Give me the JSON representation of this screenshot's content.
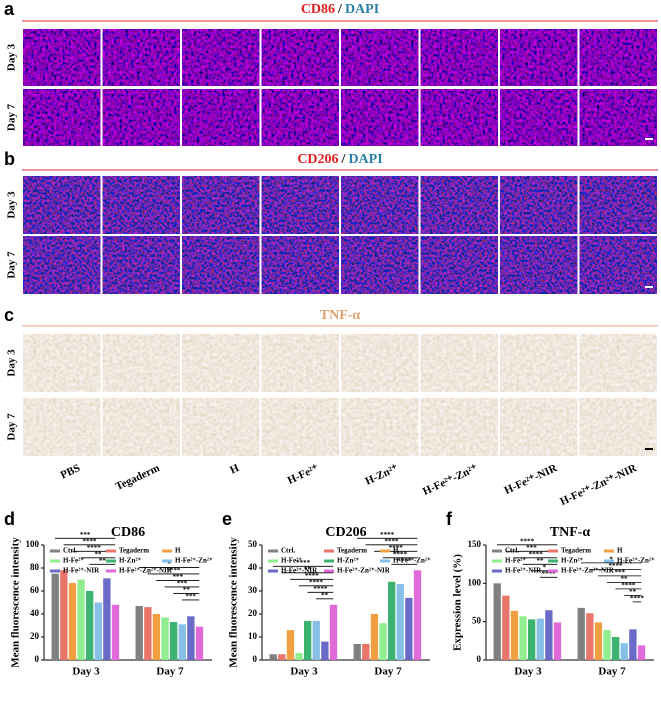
{
  "panels": [
    {
      "label": "a",
      "stain": "CD86",
      "sep": "/",
      "counter": "DAPI",
      "rows": [
        "Day 3",
        "Day 7"
      ]
    },
    {
      "label": "b",
      "stain": "CD206",
      "sep": "/",
      "counter": "DAPI",
      "rows": [
        "Day 3",
        "Day 7"
      ]
    },
    {
      "label": "c",
      "stain": "TNF-α",
      "rows": [
        "Day 3",
        "Day 7"
      ]
    }
  ],
  "groups": [
    "PBS",
    "Tegaderm",
    "H",
    "H-Fe²⁺",
    "H-Zn²⁺",
    "H-Fe²⁺-Zn²⁺",
    "H-Fe²⁺-NIR",
    "H-Fe²⁺-Zn²⁺-NIR"
  ],
  "chart_data": [
    {
      "type": "bar",
      "panel": "d",
      "title": "CD86",
      "ylabel": "Mean fluorescence intensity",
      "categories": [
        "Day 3",
        "Day 7"
      ],
      "ylim": [
        0,
        100
      ],
      "yticks": [
        0,
        20,
        40,
        60,
        80,
        100
      ],
      "series": [
        {
          "name": "Ctrl.",
          "color": "#808080",
          "values": [
            75,
            47
          ]
        },
        {
          "name": "Tegaderm",
          "color": "#e8746a",
          "values": [
            78,
            46
          ]
        },
        {
          "name": "H",
          "color": "#f0a040",
          "values": [
            67,
            40
          ]
        },
        {
          "name": "H-Fe²⁺",
          "color": "#90ee90",
          "values": [
            70,
            37
          ]
        },
        {
          "name": "H-Zn²⁺",
          "color": "#3cb371",
          "values": [
            60,
            33
          ]
        },
        {
          "name": "H-Fe²⁺-Zn²⁺",
          "color": "#87bfe8",
          "values": [
            50,
            31
          ]
        },
        {
          "name": "H-Fe²⁺-NIR",
          "color": "#6a6ac8",
          "values": [
            71,
            38
          ]
        },
        {
          "name": "H-Fe²⁺-Zn²⁺-NIR",
          "color": "#e06ad8",
          "values": [
            48,
            29
          ]
        }
      ],
      "significance": [
        [
          "***",
          "****",
          "****",
          "**",
          "**"
        ],
        [
          "*",
          "****",
          "***",
          "***",
          "**",
          "***"
        ]
      ]
    },
    {
      "type": "bar",
      "panel": "e",
      "title": "CD206",
      "ylabel": "Mean fluorescence intensity",
      "categories": [
        "Day 3",
        "Day 7"
      ],
      "ylim": [
        0,
        50
      ],
      "yticks": [
        0,
        10,
        20,
        30,
        40,
        50
      ],
      "series": [
        {
          "name": "Ctrl.",
          "color": "#808080",
          "values": [
            2.5,
            7
          ]
        },
        {
          "name": "Tegaderm",
          "color": "#e8746a",
          "values": [
            2.5,
            7
          ]
        },
        {
          "name": "H",
          "color": "#f0a040",
          "values": [
            13,
            20
          ]
        },
        {
          "name": "H-Fe²⁺",
          "color": "#90ee90",
          "values": [
            3,
            16
          ]
        },
        {
          "name": "H-Zn²⁺",
          "color": "#3cb371",
          "values": [
            17,
            34
          ]
        },
        {
          "name": "H-Fe²⁺-Zn²⁺",
          "color": "#87bfe8",
          "values": [
            17,
            33
          ]
        },
        {
          "name": "H-Fe²⁺-NIR",
          "color": "#6a6ac8",
          "values": [
            8,
            27
          ]
        },
        {
          "name": "H-Fe²⁺-Zn²⁺-NIR",
          "color": "#e06ad8",
          "values": [
            24,
            39
          ]
        }
      ],
      "significance": [
        [
          "****",
          "**",
          "****",
          "****",
          "****",
          "**"
        ],
        [
          "****",
          "****",
          "****",
          "****",
          "****"
        ]
      ]
    },
    {
      "type": "bar",
      "panel": "f",
      "title": "TNF-α",
      "ylabel": "Expression level (%)",
      "categories": [
        "Day 3",
        "Day 7"
      ],
      "ylim": [
        0,
        150
      ],
      "yticks": [
        0,
        50,
        100,
        150
      ],
      "series": [
        {
          "name": "Ctrl.",
          "color": "#808080",
          "values": [
            100,
            68
          ]
        },
        {
          "name": "Tegaderm",
          "color": "#e8746a",
          "values": [
            84,
            61
          ]
        },
        {
          "name": "H",
          "color": "#f0a040",
          "values": [
            64,
            49
          ]
        },
        {
          "name": "H-Fe²⁺",
          "color": "#90ee90",
          "values": [
            57,
            39
          ]
        },
        {
          "name": "H-Zn²⁺",
          "color": "#3cb371",
          "values": [
            53,
            30
          ]
        },
        {
          "name": "H-Fe²⁺-Zn²⁺",
          "color": "#87bfe8",
          "values": [
            54,
            22
          ]
        },
        {
          "name": "H-Fe²⁺-NIR",
          "color": "#6a6ac8",
          "values": [
            65,
            40
          ]
        },
        {
          "name": "H-Fe²⁺-Zn²⁺-NIR",
          "color": "#e06ad8",
          "values": [
            49,
            19
          ]
        }
      ],
      "significance": [
        [
          "****",
          "***",
          "****",
          "**",
          "*",
          "****"
        ],
        [
          "*",
          "****",
          "***",
          "**",
          "****",
          "**",
          "****"
        ]
      ]
    }
  ]
}
